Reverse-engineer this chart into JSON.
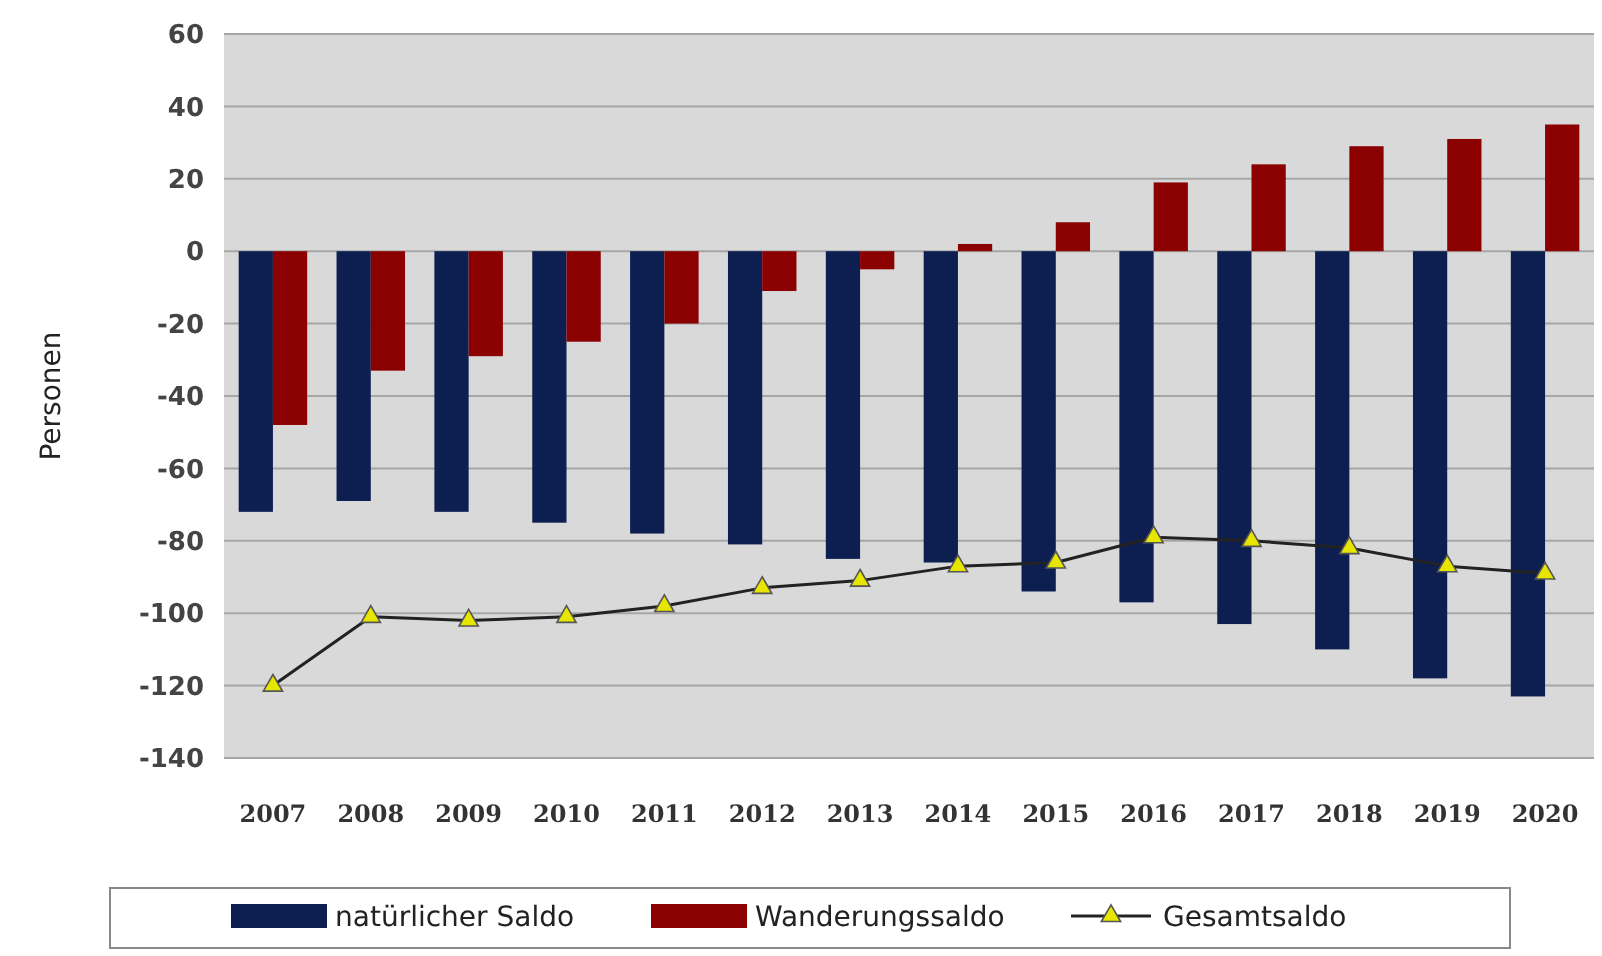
{
  "chart_data": {
    "type": "bar",
    "ylabel": "Personen",
    "categories": [
      "2007",
      "2008",
      "2009",
      "2010",
      "2011",
      "2012",
      "2013",
      "2014",
      "2015",
      "2016",
      "2017",
      "2018",
      "2019",
      "2020"
    ],
    "series": [
      {
        "name": "natürlicher Saldo",
        "color": "#0c1f50",
        "values": [
          -72,
          -69,
          -72,
          -75,
          -78,
          -81,
          -85,
          -86,
          -94,
          -97,
          -103,
          -110,
          -118,
          -123
        ]
      },
      {
        "name": "Wanderungssaldo",
        "color": "#8b0000",
        "values": [
          -48,
          -33,
          -29,
          -25,
          -20,
          -11,
          -5,
          2,
          8,
          19,
          24,
          29,
          31,
          35
        ]
      },
      {
        "name": "Gesamtsaldo",
        "type": "line",
        "color": "#e6e600",
        "marker": "triangle",
        "values": [
          -120,
          -101,
          -102,
          -101,
          -98,
          -93,
          -91,
          -87,
          -86,
          -79,
          -80,
          -82,
          -87,
          -89
        ]
      }
    ],
    "ylim": [
      -140,
      60
    ],
    "yticks": [
      -140,
      -120,
      -100,
      -80,
      -60,
      -40,
      -20,
      0,
      20,
      40,
      60
    ],
    "grid": "y",
    "legend": "bottom"
  }
}
